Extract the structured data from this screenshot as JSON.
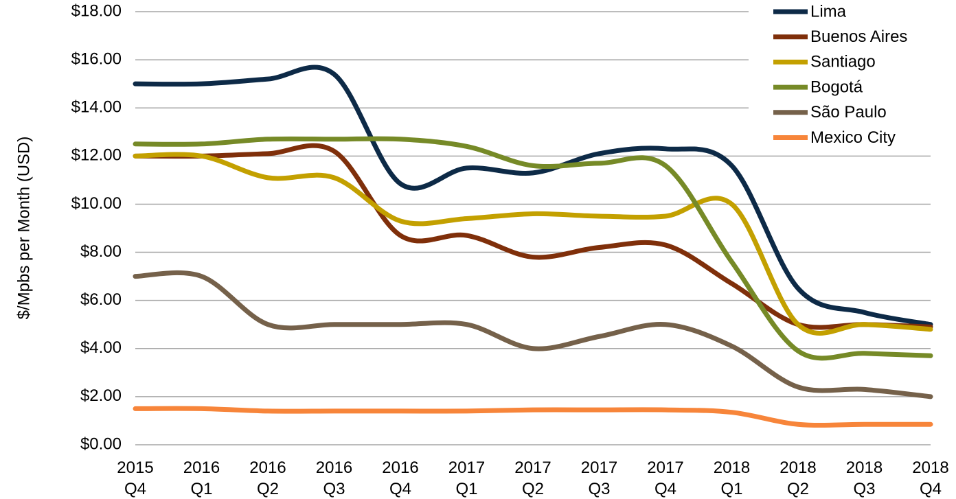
{
  "chart_data": {
    "type": "line",
    "y_label": "$/Mpbs per Month (USD)",
    "categories": [
      "2015\nQ4",
      "2016\nQ1",
      "2016\nQ2",
      "2016\nQ3",
      "2016\nQ4",
      "2017\nQ1",
      "2017\nQ2",
      "2017\nQ3",
      "2017\nQ4",
      "2018\nQ1",
      "2018\nQ2",
      "2018\nQ3",
      "2018\nQ4"
    ],
    "series": [
      {
        "name": "Lima",
        "color": "#0d2a47",
        "values": [
          15,
          15,
          15.2,
          15.4,
          10.85,
          11.5,
          11.3,
          12.1,
          12.3,
          11.6,
          6.5,
          5.5,
          5.0
        ]
      },
      {
        "name": "Buenos Aires",
        "color": "#7f2f0a",
        "values": [
          12,
          12,
          12.1,
          12.2,
          8.7,
          8.7,
          7.8,
          8.2,
          8.3,
          6.7,
          5.0,
          5.0,
          4.9
        ]
      },
      {
        "name": "Santiago",
        "color": "#c3a000",
        "values": [
          12,
          12,
          11.1,
          11.1,
          9.3,
          9.4,
          9.6,
          9.5,
          9.5,
          10.0,
          5.0,
          5.0,
          4.8
        ]
      },
      {
        "name": "Bogotá",
        "color": "#768a27",
        "values": [
          12.5,
          12.5,
          12.7,
          12.7,
          12.7,
          12.4,
          11.6,
          11.7,
          11.6,
          7.6,
          3.9,
          3.8,
          3.7
        ]
      },
      {
        "name": "São Paulo",
        "color": "#75614a",
        "values": [
          7.0,
          7.0,
          5.0,
          5.0,
          5.0,
          5.0,
          4.0,
          4.5,
          5.0,
          4.1,
          2.4,
          2.3,
          2.0
        ]
      },
      {
        "name": "Mexico City",
        "color": "#f7853a",
        "values": [
          1.5,
          1.5,
          1.4,
          1.4,
          1.4,
          1.4,
          1.45,
          1.45,
          1.45,
          1.35,
          0.85,
          0.85,
          0.85
        ]
      }
    ],
    "ylim": [
      0,
      18
    ],
    "yticks": [
      {
        "value": 0,
        "label": "$0.00"
      },
      {
        "value": 2,
        "label": "$2.00"
      },
      {
        "value": 4,
        "label": "$4.00"
      },
      {
        "value": 6,
        "label": "$6.00"
      },
      {
        "value": 8,
        "label": "$8.00"
      },
      {
        "value": 10,
        "label": "$10.00"
      },
      {
        "value": 12,
        "label": "$12.00"
      },
      {
        "value": 14,
        "label": "$14.00"
      },
      {
        "value": 16,
        "label": "$16.00"
      },
      {
        "value": 18,
        "label": "$18.00"
      }
    ],
    "grid": true,
    "smooth": true,
    "legend": "top-right"
  }
}
